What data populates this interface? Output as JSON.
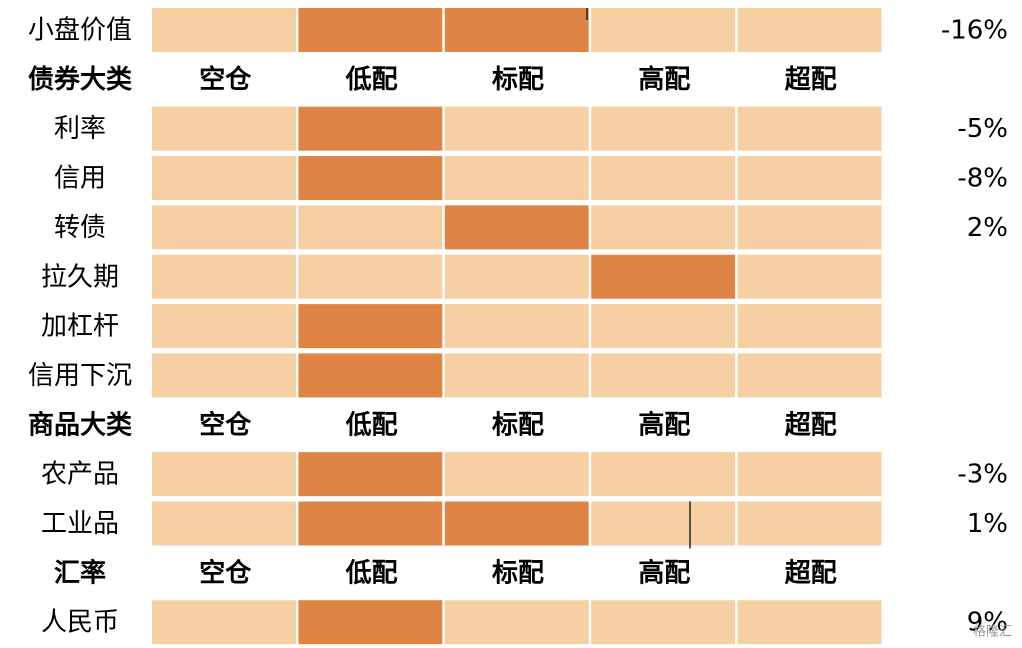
{
  "columns": [
    "空仓",
    "低配",
    "标配",
    "高配",
    "超配"
  ],
  "colors": {
    "light": "#f6cfa3",
    "dark": "#e08445"
  },
  "rows": [
    {
      "label": "小盘价值",
      "highlight": [
        1,
        2
      ],
      "change": "-16%"
    },
    {
      "section": "债券大类"
    },
    {
      "label": "利率",
      "highlight": [
        1
      ],
      "change": "-5%"
    },
    {
      "label": "信用",
      "highlight": [
        1
      ],
      "change": "-8%"
    },
    {
      "label": "转债",
      "highlight": [
        2
      ],
      "change": "2%"
    },
    {
      "label": "拉久期",
      "highlight": [
        3
      ]
    },
    {
      "label": "加杠杆",
      "highlight": [
        1
      ]
    },
    {
      "label": "信用下沉",
      "highlight": [
        1
      ]
    },
    {
      "section": "商品大类"
    },
    {
      "label": "农产品",
      "highlight": [
        1
      ],
      "change": "-3%"
    },
    {
      "label": "工业品",
      "highlight": [
        1,
        2
      ],
      "change": "1%"
    },
    {
      "section": "汇率"
    },
    {
      "label": "人民币",
      "highlight": [
        1
      ],
      "change": "9%"
    }
  ],
  "watermark": "格隆汇"
}
